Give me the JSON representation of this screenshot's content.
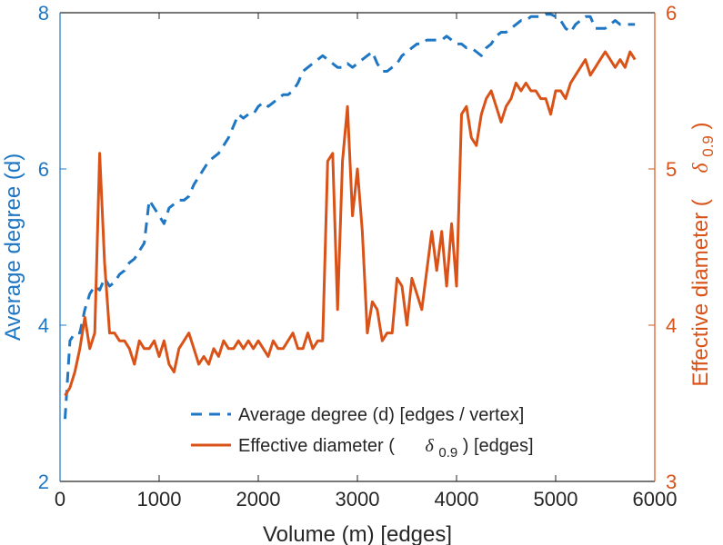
{
  "chart_data": {
    "type": "line",
    "xlabel": "Volume (m) [edges]",
    "ylabel_left": "Average degree (d)",
    "ylabel_right_prefix": "Effective diameter (",
    "ylabel_right_symbol": "δ",
    "ylabel_right_subscript": "0.9",
    "ylabel_right_suffix": ")",
    "xlim": [
      0,
      6000
    ],
    "ylim_left": [
      2,
      8
    ],
    "ylim_right": [
      3,
      6
    ],
    "xticks": [
      0,
      1000,
      2000,
      3000,
      4000,
      5000,
      6000
    ],
    "yticks_left": [
      2,
      4,
      6,
      8
    ],
    "yticks_right": [
      3,
      4,
      5,
      6
    ],
    "legend_position": "bottom-right",
    "colors": {
      "left": "#1f77c4",
      "right": "#d95319",
      "axis": "#262626"
    },
    "series": [
      {
        "name": "Average degree (d) [edges / vertex]",
        "axis": "left",
        "style": "dashed",
        "color": "#1f77c4",
        "x": [
          50,
          100,
          150,
          200,
          250,
          300,
          350,
          400,
          450,
          500,
          550,
          600,
          650,
          700,
          750,
          800,
          850,
          900,
          950,
          1000,
          1050,
          1100,
          1150,
          1200,
          1250,
          1300,
          1350,
          1400,
          1450,
          1500,
          1550,
          1600,
          1650,
          1700,
          1750,
          1800,
          1850,
          1900,
          1950,
          2000,
          2050,
          2100,
          2150,
          2200,
          2250,
          2300,
          2350,
          2400,
          2450,
          2500,
          2550,
          2600,
          2650,
          2700,
          2750,
          2800,
          2850,
          2900,
          2950,
          3000,
          3050,
          3100,
          3150,
          3200,
          3250,
          3300,
          3350,
          3400,
          3450,
          3500,
          3550,
          3600,
          3650,
          3700,
          3750,
          3800,
          3850,
          3900,
          3950,
          4000,
          4050,
          4100,
          4150,
          4200,
          4250,
          4300,
          4350,
          4400,
          4450,
          4500,
          4550,
          4600,
          4650,
          4700,
          4750,
          4800,
          4850,
          4900,
          4950,
          5000,
          5050,
          5100,
          5150,
          5200,
          5250,
          5300,
          5350,
          5400,
          5450,
          5500,
          5550,
          5600,
          5650,
          5700,
          5750,
          5800
        ],
        "values": [
          2.8,
          3.8,
          3.9,
          3.9,
          4.2,
          4.4,
          4.5,
          4.45,
          4.6,
          4.5,
          4.55,
          4.65,
          4.7,
          4.8,
          4.85,
          4.95,
          5.05,
          5.6,
          5.5,
          5.4,
          5.3,
          5.5,
          5.55,
          5.6,
          5.6,
          5.65,
          5.8,
          5.9,
          6.0,
          6.1,
          6.15,
          6.2,
          6.3,
          6.4,
          6.55,
          6.7,
          6.65,
          6.7,
          6.7,
          6.8,
          6.85,
          6.8,
          6.85,
          6.9,
          6.95,
          6.95,
          7.0,
          7.1,
          7.25,
          7.3,
          7.35,
          7.4,
          7.45,
          7.4,
          7.35,
          7.3,
          7.3,
          7.35,
          7.3,
          7.35,
          7.4,
          7.45,
          7.5,
          7.35,
          7.25,
          7.25,
          7.3,
          7.35,
          7.45,
          7.5,
          7.55,
          7.6,
          7.6,
          7.65,
          7.65,
          7.65,
          7.65,
          7.7,
          7.65,
          7.6,
          7.6,
          7.55,
          7.55,
          7.5,
          7.45,
          7.55,
          7.6,
          7.7,
          7.75,
          7.75,
          7.8,
          7.85,
          7.9,
          7.9,
          7.95,
          7.95,
          7.95,
          7.98,
          7.98,
          7.95,
          7.9,
          7.8,
          7.75,
          7.85,
          7.9,
          7.95,
          7.95,
          7.8,
          7.8,
          7.8,
          7.85,
          7.9,
          7.85,
          7.85,
          7.85,
          7.85
        ]
      },
      {
        "name": "Effective diameter (δ0.9) [edges]",
        "legend_prefix": "Effective diameter (",
        "legend_symbol": "δ",
        "legend_subscript": "0.9",
        "legend_suffix": ") [edges]",
        "axis": "right",
        "style": "solid",
        "color": "#d95319",
        "x": [
          50,
          100,
          150,
          200,
          250,
          300,
          350,
          400,
          450,
          500,
          550,
          600,
          650,
          700,
          750,
          800,
          850,
          900,
          950,
          1000,
          1050,
          1100,
          1150,
          1200,
          1250,
          1300,
          1350,
          1400,
          1450,
          1500,
          1550,
          1600,
          1650,
          1700,
          1750,
          1800,
          1850,
          1900,
          1950,
          2000,
          2050,
          2100,
          2150,
          2200,
          2250,
          2300,
          2350,
          2400,
          2450,
          2500,
          2550,
          2600,
          2650,
          2700,
          2750,
          2800,
          2850,
          2900,
          2950,
          3000,
          3050,
          3100,
          3150,
          3200,
          3250,
          3300,
          3350,
          3400,
          3450,
          3500,
          3550,
          3600,
          3650,
          3700,
          3750,
          3800,
          3850,
          3900,
          3950,
          4000,
          4050,
          4100,
          4150,
          4200,
          4250,
          4300,
          4350,
          4400,
          4450,
          4500,
          4550,
          4600,
          4650,
          4700,
          4750,
          4800,
          4850,
          4900,
          4950,
          5000,
          5050,
          5100,
          5150,
          5200,
          5250,
          5300,
          5350,
          5400,
          5450,
          5500,
          5550,
          5600,
          5650,
          5700,
          5750,
          5800
        ],
        "values": [
          3.55,
          3.6,
          3.7,
          3.85,
          4.05,
          3.85,
          3.95,
          5.1,
          4.4,
          3.95,
          3.95,
          3.9,
          3.9,
          3.85,
          3.75,
          3.9,
          3.85,
          3.85,
          3.9,
          3.8,
          3.9,
          3.75,
          3.7,
          3.85,
          3.9,
          3.95,
          3.85,
          3.75,
          3.8,
          3.75,
          3.85,
          3.8,
          3.9,
          3.85,
          3.85,
          3.9,
          3.85,
          3.9,
          3.85,
          3.9,
          3.85,
          3.8,
          3.9,
          3.85,
          3.85,
          3.9,
          3.95,
          3.85,
          3.85,
          3.95,
          3.85,
          3.9,
          3.9,
          5.05,
          5.1,
          4.1,
          5.05,
          5.4,
          4.7,
          5.0,
          4.6,
          3.95,
          4.15,
          4.1,
          3.9,
          3.95,
          3.95,
          4.3,
          4.25,
          4.0,
          4.3,
          4.2,
          4.1,
          4.35,
          4.6,
          4.35,
          4.6,
          4.25,
          4.65,
          4.25,
          5.35,
          5.4,
          5.2,
          5.15,
          5.35,
          5.45,
          5.5,
          5.4,
          5.3,
          5.4,
          5.45,
          5.55,
          5.5,
          5.55,
          5.5,
          5.5,
          5.45,
          5.45,
          5.35,
          5.5,
          5.5,
          5.45,
          5.55,
          5.6,
          5.65,
          5.7,
          5.6,
          5.65,
          5.7,
          5.75,
          5.7,
          5.65,
          5.7,
          5.65,
          5.75,
          5.7
        ]
      }
    ]
  }
}
